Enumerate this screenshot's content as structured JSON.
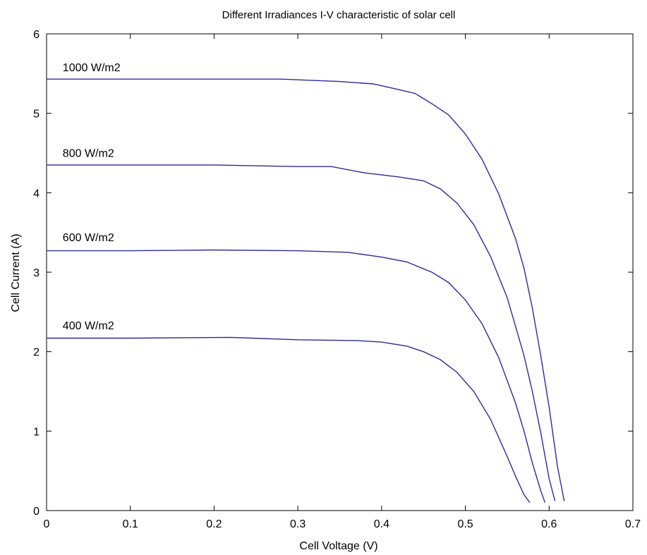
{
  "chart_data": {
    "type": "line",
    "title": "Different Irradiances I-V characteristic of solar cell",
    "xlabel": "Cell Voltage (V)",
    "ylabel": "Cell Current (A)",
    "xlim": [
      0,
      0.7
    ],
    "ylim": [
      0,
      6
    ],
    "xticks": [
      0,
      0.1,
      0.2,
      0.3,
      0.4,
      0.5,
      0.6,
      0.7
    ],
    "yticks": [
      0,
      1,
      2,
      3,
      4,
      5,
      6
    ],
    "xtick_labels": [
      "0",
      "0.1",
      "0.2",
      "0.3",
      "0.4",
      "0.5",
      "0.6",
      "0.7"
    ],
    "ytick_labels": [
      "0",
      "1",
      "2",
      "3",
      "4",
      "5",
      "6"
    ],
    "grid": false,
    "line_color": "#2b2b99",
    "series": [
      {
        "label": "1000 W/m2",
        "x": [
          0,
          0.1,
          0.2,
          0.28,
          0.35,
          0.39,
          0.42,
          0.44,
          0.46,
          0.48,
          0.5,
          0.52,
          0.54,
          0.56,
          0.57,
          0.58,
          0.59,
          0.6,
          0.61,
          0.618
        ],
        "y": [
          5.43,
          5.43,
          5.43,
          5.43,
          5.4,
          5.37,
          5.3,
          5.25,
          5.12,
          4.98,
          4.74,
          4.42,
          3.98,
          3.42,
          3.05,
          2.55,
          1.95,
          1.3,
          0.55,
          0.12
        ]
      },
      {
        "label": "800 W/m2",
        "x": [
          0,
          0.1,
          0.2,
          0.3,
          0.34,
          0.38,
          0.42,
          0.45,
          0.47,
          0.49,
          0.51,
          0.53,
          0.55,
          0.57,
          0.58,
          0.59,
          0.6,
          0.607
        ],
        "y": [
          4.35,
          4.35,
          4.35,
          4.33,
          4.33,
          4.25,
          4.2,
          4.15,
          4.05,
          3.87,
          3.6,
          3.2,
          2.68,
          1.95,
          1.5,
          0.98,
          0.4,
          0.12
        ]
      },
      {
        "label": "600 W/m2",
        "x": [
          0,
          0.1,
          0.2,
          0.3,
          0.36,
          0.4,
          0.43,
          0.46,
          0.48,
          0.5,
          0.52,
          0.54,
          0.56,
          0.57,
          0.58,
          0.59,
          0.595
        ],
        "y": [
          3.27,
          3.27,
          3.28,
          3.27,
          3.25,
          3.19,
          3.13,
          3.0,
          2.87,
          2.65,
          2.35,
          1.92,
          1.35,
          1.0,
          0.6,
          0.25,
          0.1
        ]
      },
      {
        "label": "400 W/m2",
        "x": [
          0,
          0.1,
          0.22,
          0.3,
          0.37,
          0.4,
          0.43,
          0.45,
          0.47,
          0.49,
          0.51,
          0.53,
          0.55,
          0.56,
          0.57,
          0.577
        ],
        "y": [
          2.17,
          2.17,
          2.18,
          2.15,
          2.14,
          2.12,
          2.07,
          2.0,
          1.9,
          1.74,
          1.5,
          1.15,
          0.68,
          0.43,
          0.2,
          0.1
        ]
      }
    ],
    "annotations": [
      {
        "text": "1000 W/m2",
        "x": 0.015,
        "y": 5.53
      },
      {
        "text": "800 W/m2",
        "x": 0.015,
        "y": 4.45
      },
      {
        "text": "600 W/m2",
        "x": 0.015,
        "y": 3.39
      },
      {
        "text": "400 W/m2",
        "x": 0.015,
        "y": 2.28
      }
    ]
  }
}
